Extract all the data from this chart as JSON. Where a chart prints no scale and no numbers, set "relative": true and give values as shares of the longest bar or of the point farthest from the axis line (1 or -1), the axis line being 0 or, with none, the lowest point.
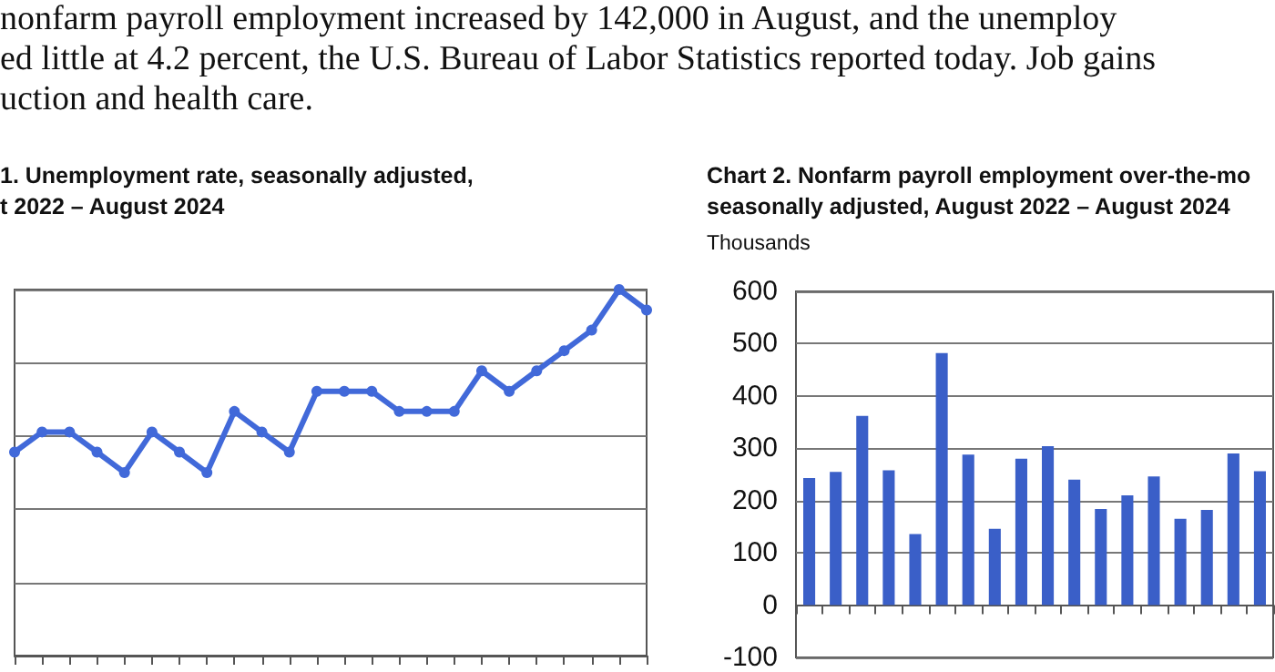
{
  "chart_data": [
    {
      "type": "line",
      "title": "1. Unemployment rate, seasonally adjusted,\nt 2022 – August 2024",
      "relative": true,
      "grid": "y",
      "marker": "circle",
      "line_style": "solid",
      "annotations": [
        "nonfarm payroll employment increased by 142,000 in August, and the unemploy",
        "ed little at 4.2 percent, the U.S. Bureau of Labor Statistics reported today. Job gains",
        "uction and health care."
      ],
      "categories": [
        null,
        null,
        null,
        null,
        null,
        null,
        null,
        null,
        null,
        null,
        null,
        null,
        null,
        null,
        null,
        null,
        null,
        null,
        null,
        null,
        null,
        null,
        null,
        null
      ],
      "series": [
        {
          "color": "#4169d9",
          "values": [
            0.556,
            0.611,
            0.611,
            0.556,
            0.5,
            0.611,
            0.556,
            0.5,
            0.667,
            0.611,
            0.556,
            0.722,
            0.722,
            0.722,
            0.667,
            0.667,
            0.667,
            0.778,
            0.722,
            0.778,
            0.833,
            0.889,
            1,
            0.944
          ]
        }
      ]
    },
    {
      "type": "bar",
      "title": "Chart 2. Nonfarm payroll employment over-the-mo\nseasonally adjusted, August 2022 – August 2024",
      "ylabel": "Thousands",
      "grid": "y",
      "categories": [
        null,
        null,
        null,
        null,
        null,
        null,
        null,
        null,
        null,
        null,
        null,
        null,
        null,
        null,
        null,
        null,
        null,
        null
      ],
      "ylim": [
        -100,
        600
      ],
      "yticks": [
        -100,
        0,
        100,
        200,
        300,
        400,
        500,
        600
      ],
      "series": [
        {
          "color": "#3a5fc8",
          "values": [
            243,
            255,
            362,
            258,
            136,
            482,
            288,
            146,
            280,
            304,
            240,
            184,
            210,
            246,
            165,
            182,
            290,
            256
          ]
        }
      ]
    }
  ]
}
